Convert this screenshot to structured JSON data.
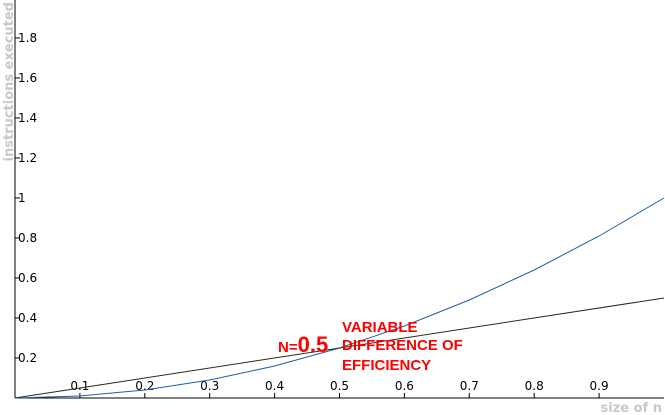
{
  "chart_data": {
    "type": "line",
    "title": "",
    "xlabel": "size of n",
    "ylabel": "instructions executed",
    "xlim": [
      0,
      1
    ],
    "ylim": [
      0,
      2
    ],
    "x_ticks": [
      "0.1",
      "0.2",
      "0.3",
      "0.4",
      "0.5",
      "0.6",
      "0.7",
      "0.8",
      "0.9"
    ],
    "y_ticks": [
      "0.2",
      "0.4",
      "0.6",
      "0.8",
      "1",
      "1.2",
      "1.4",
      "1.6",
      "1.8"
    ],
    "series": [
      {
        "name": "",
        "color": "#1f5fa8",
        "x": [
          0,
          0.1,
          0.2,
          0.3,
          0.4,
          0.5,
          0.6,
          0.7,
          0.8,
          0.9,
          1.0
        ],
        "y": [
          0,
          0.01,
          0.04,
          0.09,
          0.16,
          0.25,
          0.36,
          0.49,
          0.64,
          0.81,
          1.0
        ]
      },
      {
        "name": "",
        "color": "#2b2b1a",
        "x": [
          0,
          1.0
        ],
        "y": [
          0,
          0.5
        ]
      }
    ],
    "annotations": {
      "n_prefix": "N=",
      "n_value": "0.5",
      "lines": [
        "VARIABLE",
        "DIFFERENCE OF",
        "EFFICIENCY"
      ],
      "color": "#ff0000"
    },
    "grid": false,
    "legend": "none"
  }
}
